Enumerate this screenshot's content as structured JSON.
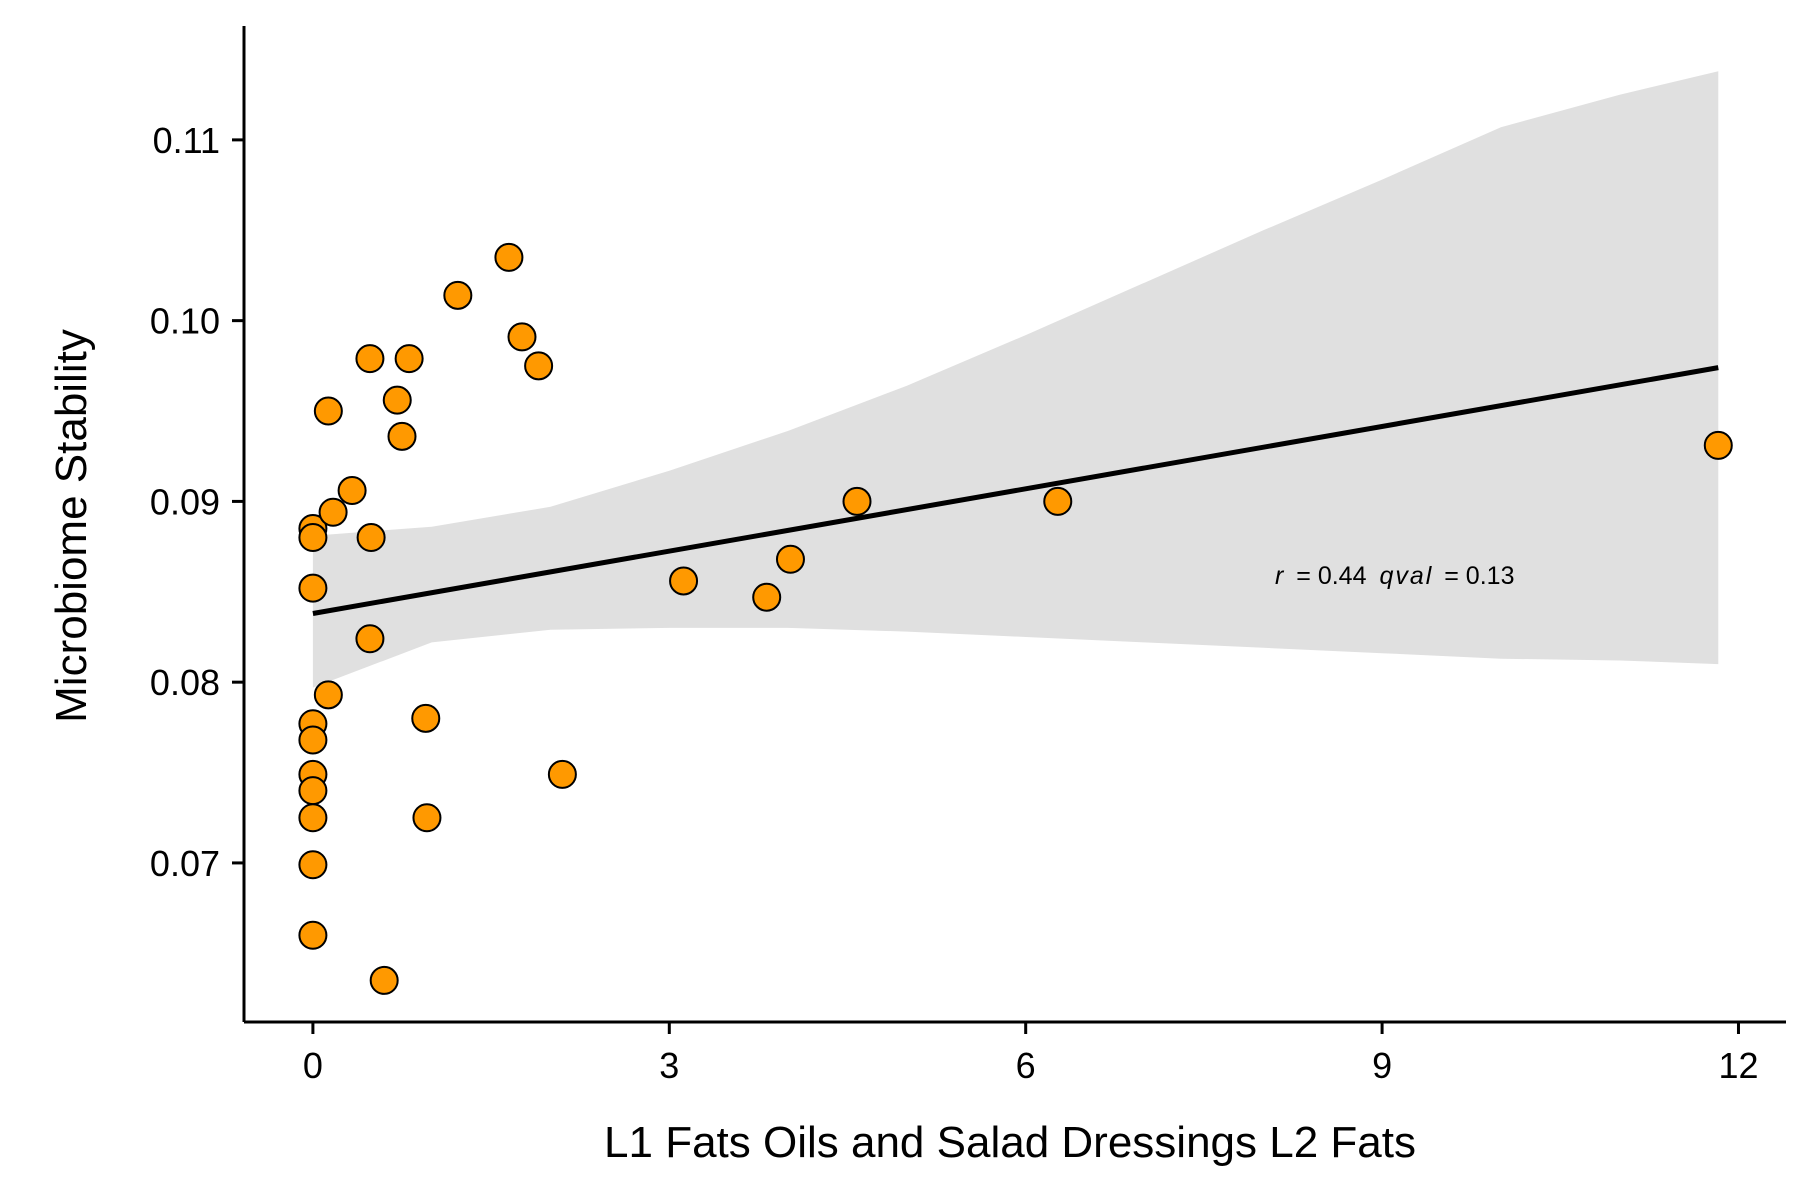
{
  "chart_data": {
    "type": "scatter",
    "xlabel": "L1 Fats Oils and Salad Dressings  L2 Fats",
    "ylabel": "Microbiome Stability",
    "xlim": [
      -0.58,
      12.4
    ],
    "ylim": [
      0.0612,
      0.1163
    ],
    "x_ticks": [
      0,
      3,
      6,
      9,
      12
    ],
    "x_tick_labels": [
      "0",
      "3",
      "6",
      "9",
      "12"
    ],
    "y_ticks": [
      0.07,
      0.08,
      0.09,
      0.1,
      0.11
    ],
    "y_tick_labels": [
      "0.07",
      "0.08",
      "0.09",
      "0.10",
      "0.11"
    ],
    "grid": false,
    "point_color": "#FF9900",
    "point_edge_color": "#000000",
    "band_color": "#E0E0E0",
    "line_color": "#000000",
    "annotation": {
      "r_symbol": "r",
      "r_value": "= 0.44",
      "q_symbol": "qval",
      "q_value": "= 0.13"
    },
    "points": [
      {
        "x": 0.0,
        "y": 0.0885
      },
      {
        "x": 0.0,
        "y": 0.088
      },
      {
        "x": 0.0,
        "y": 0.0852
      },
      {
        "x": 0.0,
        "y": 0.0777
      },
      {
        "x": 0.0,
        "y": 0.0768
      },
      {
        "x": 0.0,
        "y": 0.0749
      },
      {
        "x": 0.0,
        "y": 0.074
      },
      {
        "x": 0.0,
        "y": 0.0725
      },
      {
        "x": 0.0,
        "y": 0.0699
      },
      {
        "x": 0.0,
        "y": 0.066
      },
      {
        "x": 0.13,
        "y": 0.095
      },
      {
        "x": 0.13,
        "y": 0.0793
      },
      {
        "x": 0.17,
        "y": 0.0894
      },
      {
        "x": 0.33,
        "y": 0.0906
      },
      {
        "x": 0.48,
        "y": 0.0979
      },
      {
        "x": 0.49,
        "y": 0.088
      },
      {
        "x": 0.48,
        "y": 0.0824
      },
      {
        "x": 0.6,
        "y": 0.0635
      },
      {
        "x": 0.71,
        "y": 0.0956
      },
      {
        "x": 0.75,
        "y": 0.0936
      },
      {
        "x": 0.81,
        "y": 0.0979
      },
      {
        "x": 0.95,
        "y": 0.078
      },
      {
        "x": 0.96,
        "y": 0.0725
      },
      {
        "x": 1.22,
        "y": 0.1014
      },
      {
        "x": 1.65,
        "y": 0.1035
      },
      {
        "x": 1.76,
        "y": 0.0991
      },
      {
        "x": 1.9,
        "y": 0.0975
      },
      {
        "x": 2.1,
        "y": 0.0749
      },
      {
        "x": 3.12,
        "y": 0.0856
      },
      {
        "x": 3.82,
        "y": 0.0847
      },
      {
        "x": 4.02,
        "y": 0.0868
      },
      {
        "x": 4.58,
        "y": 0.09
      },
      {
        "x": 6.27,
        "y": 0.09
      },
      {
        "x": 11.83,
        "y": 0.0931
      }
    ],
    "fit_line": {
      "x": [
        0,
        11.83
      ],
      "y": [
        0.0838,
        0.0974
      ]
    },
    "confidence_band": {
      "x": [
        0,
        1,
        2,
        3,
        4,
        5,
        6,
        7,
        8,
        9,
        10,
        11,
        11.83
      ],
      "upper": [
        0.0881,
        0.0886,
        0.0897,
        0.0917,
        0.0939,
        0.0964,
        0.0992,
        0.1021,
        0.105,
        0.1078,
        0.1107,
        0.1125,
        0.1138
      ],
      "lower": [
        0.0797,
        0.0822,
        0.0829,
        0.083,
        0.083,
        0.0828,
        0.0825,
        0.0822,
        0.0819,
        0.0816,
        0.0813,
        0.0812,
        0.081
      ]
    }
  }
}
